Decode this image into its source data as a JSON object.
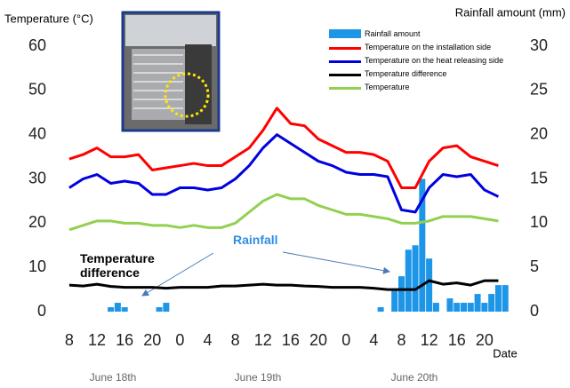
{
  "chart_data": {
    "type": "bar-line",
    "y_label": "Temperature (°C)",
    "y2_label": "Rainfall amount (mm)",
    "x_label": "Date",
    "date_labels": [
      "June 18th",
      "June 19th",
      "June 20th"
    ],
    "annotations": [
      "Temperature difference",
      "Rainfall"
    ],
    "xlim": [
      7.5,
      72
    ],
    "xticks": [
      {
        "value": 8,
        "label": "8"
      },
      {
        "value": 12,
        "label": "12"
      },
      {
        "value": 16,
        "label": "16"
      },
      {
        "value": 20,
        "label": "20"
      },
      {
        "value": 24,
        "label": "0"
      },
      {
        "value": 28,
        "label": "4"
      },
      {
        "value": 32,
        "label": "8"
      },
      {
        "value": 36,
        "label": "12"
      },
      {
        "value": 40,
        "label": "16"
      },
      {
        "value": 44,
        "label": "20"
      },
      {
        "value": 48,
        "label": "0"
      },
      {
        "value": 52,
        "label": "4"
      },
      {
        "value": 56,
        "label": "8"
      },
      {
        "value": 60,
        "label": "12"
      },
      {
        "value": 64,
        "label": "16"
      },
      {
        "value": 68,
        "label": "20"
      }
    ],
    "ylim": [
      0,
      60
    ],
    "yticks": [
      0,
      10,
      20,
      30,
      40,
      50,
      60
    ],
    "y2lim": [
      0,
      30
    ],
    "y2ticks": [
      0,
      5,
      10,
      15,
      20,
      25,
      30
    ],
    "legend": "upper right",
    "x": [
      8,
      10,
      12,
      14,
      16,
      18,
      20,
      22,
      24,
      26,
      28,
      30,
      32,
      34,
      36,
      38,
      40,
      42,
      44,
      46,
      48,
      50,
      52,
      54,
      56,
      58,
      60,
      62,
      64,
      66,
      68,
      70
    ],
    "series": [
      {
        "name": "Rainfall amount",
        "type": "bar",
        "axis": "y2",
        "color": "#1e96e8",
        "x": [
          14,
          15,
          16,
          21,
          22,
          53,
          55,
          56,
          57,
          58,
          59,
          60,
          61,
          63,
          64,
          65,
          66,
          67,
          68,
          69,
          70,
          71
        ],
        "values": [
          0.5,
          1,
          0.5,
          0.5,
          1,
          0.5,
          2.5,
          4,
          7,
          7.5,
          15,
          6,
          1,
          1.5,
          1,
          1,
          1,
          2,
          1,
          2,
          3,
          3
        ]
      },
      {
        "name": "Temperature on the installation side",
        "type": "line",
        "color": "#ff0000",
        "values": [
          34.5,
          35.5,
          37,
          35,
          35,
          35.5,
          32,
          32.5,
          33,
          33.5,
          33,
          33,
          35,
          37,
          41,
          46,
          42.5,
          42,
          39,
          37.5,
          36,
          36,
          35.5,
          34,
          28,
          28,
          34,
          37,
          37.5,
          35,
          34,
          33
        ]
      },
      {
        "name": "Temperature on the heat releasing side",
        "type": "line",
        "color": "#0000e0",
        "values": [
          28,
          30,
          31,
          29,
          29.5,
          29,
          26.5,
          26.5,
          28,
          28,
          27.5,
          28,
          30,
          33,
          37,
          40,
          38,
          36,
          34,
          33,
          31.5,
          31,
          31,
          30.5,
          23,
          22.5,
          28,
          31,
          30.5,
          31,
          27.5,
          26
        ]
      },
      {
        "name": "Temperature difference",
        "type": "line",
        "color": "#000000",
        "values": [
          6,
          5.8,
          6.2,
          5.7,
          5.5,
          5.5,
          5.5,
          5.3,
          5.5,
          5.5,
          5.5,
          5.8,
          5.8,
          6,
          6.2,
          6,
          6,
          5.8,
          5.7,
          5.5,
          5.5,
          5.5,
          5.3,
          5,
          5,
          5,
          7,
          6.2,
          6.5,
          6,
          7,
          7
        ]
      },
      {
        "name": "Temperature",
        "type": "line",
        "color": "#92d050",
        "values": [
          18.5,
          19.5,
          20.5,
          20.5,
          20,
          20,
          19.5,
          19.5,
          19,
          19.5,
          19,
          19,
          20,
          22.5,
          25,
          26.5,
          25.5,
          25.5,
          24,
          23,
          22,
          22,
          21.5,
          21,
          20,
          20,
          20.5,
          21.5,
          21.5,
          21.5,
          21,
          20.5
        ]
      }
    ]
  }
}
